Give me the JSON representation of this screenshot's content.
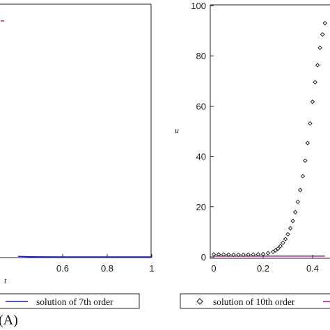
{
  "chart_data": [
    {
      "type": "line",
      "panel": "left",
      "panel_label": "(A)",
      "xlabel": "t",
      "ylabel": "",
      "xlim": [
        0,
        1
      ],
      "x_ticks": [
        "0.6",
        "0.8",
        "1"
      ],
      "legend": {
        "placement": "bottom",
        "entries": [
          "solution of 7th order"
        ]
      },
      "colors": {
        "solution_line": "#1a1acc",
        "marker": "#d81b1b"
      },
      "series": [
        {
          "name": "solution of 7th order",
          "x": [
            0.4,
            0.45,
            0.5,
            0.6,
            0.8,
            1.0
          ],
          "values": [
            0.2,
            0.08,
            0.03,
            0.01,
            0.0,
            0.0
          ]
        }
      ]
    },
    {
      "type": "scatter",
      "panel": "right",
      "xlabel": "",
      "ylabel": "u",
      "xlim": [
        0,
        0.45
      ],
      "ylim": [
        0,
        100
      ],
      "x_ticks": [
        "0",
        "0.2",
        "0.4"
      ],
      "y_ticks": [
        "0",
        "20",
        "40",
        "60",
        "80",
        "100"
      ],
      "legend": {
        "placement": "bottom",
        "entries": [
          "solution of 10th order"
        ]
      },
      "colors": {
        "scatter": "#111111",
        "flat_line": "#a01a8a"
      },
      "series": [
        {
          "name": "solution of 10th order",
          "x": [
            0.0,
            0.02,
            0.04,
            0.06,
            0.08,
            0.1,
            0.12,
            0.14,
            0.16,
            0.18,
            0.2,
            0.22,
            0.24,
            0.25,
            0.26,
            0.27,
            0.28,
            0.29,
            0.3,
            0.31,
            0.32,
            0.33,
            0.34,
            0.35,
            0.36,
            0.37,
            0.38,
            0.39,
            0.4,
            0.41,
            0.42,
            0.43,
            0.44,
            0.45
          ],
          "values": [
            1.0,
            1.0,
            0.95,
            0.9,
            0.85,
            0.85,
            0.85,
            0.9,
            0.95,
            1.0,
            1.1,
            1.5,
            2.0,
            2.6,
            3.3,
            4.3,
            5.6,
            7.1,
            9.0,
            11.4,
            14.3,
            17.8,
            21.9,
            26.6,
            32.1,
            38.3,
            45.3,
            53.1,
            61.7,
            69.5,
            76.3,
            83.2,
            88.5,
            93.0
          ]
        },
        {
          "name": "",
          "x": [
            0.0,
            0.45
          ],
          "values": [
            0.3,
            0.3
          ]
        }
      ]
    }
  ]
}
